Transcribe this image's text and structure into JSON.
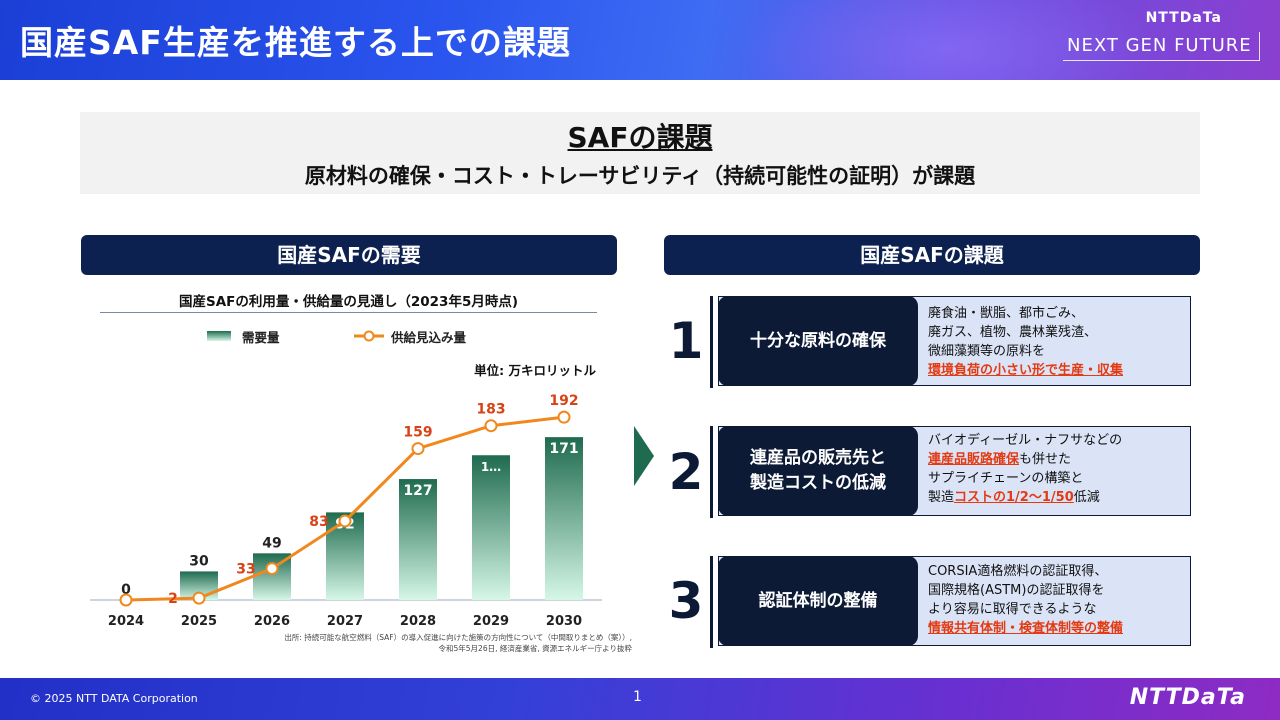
{
  "header": {
    "title": "国産SAF生産を推進する上での課題",
    "brand_small": "NTTDaTa",
    "brand_tag": "NEXT GEN FUTURE"
  },
  "summary": {
    "title": "SAFの課題",
    "subtitle": "原材料の確保・コスト・トレーサビリティ（持続可能性の証明）が課題"
  },
  "left": {
    "section_title": "国産SAFの需要",
    "chart_title": "国産SAFの利用量・供給量の見通し（2023年5月時点)",
    "unit": "単位: 万キロリットル",
    "source_line1": "出所: 持続可能な航空燃料（SAF）の導入促進に向けた施策の方向性について（中間取りまとめ（案））,",
    "source_line2": "令和5年5月26日, 経済産業省, 資源エネルギー庁より抜粋"
  },
  "chart_data": {
    "type": "bar",
    "categories": [
      "2024",
      "2025",
      "2026",
      "2027",
      "2028",
      "2029",
      "2030"
    ],
    "series": [
      {
        "name": "需要量",
        "type": "bar",
        "values": [
          0,
          30,
          49,
          92,
          127,
          1,
          171
        ],
        "labels": [
          "0",
          "30",
          "49",
          "92",
          "127",
          "1…",
          "171"
        ]
      },
      {
        "name": "供給見込み量",
        "type": "line",
        "values": [
          0,
          2,
          33,
          83,
          159,
          183,
          192
        ],
        "labels": [
          "",
          "2",
          "33",
          "83",
          "159",
          "183",
          "192"
        ]
      }
    ],
    "ylim": [
      0,
      210
    ],
    "legend_position": "top",
    "colors": {
      "bar_top": "#1f6b4f",
      "bar_bottom": "#d6f7e8",
      "line": "#f0881e",
      "line_label": "#d84315",
      "axis": "#9aa8b8"
    }
  },
  "right": {
    "section_title": "国産SAFの課題",
    "issues": [
      {
        "num": "1",
        "label": "十分な原料の確保",
        "lines": [
          "廃食油・獣脂、都市ごみ、",
          "廃ガス、植物、農林業残渣、",
          "微細藻類等の原料を"
        ],
        "highlight": "環境負荷の小さい形で生産・収集"
      },
      {
        "num": "2",
        "label1": "連産品の販売先と",
        "label2": "製造コストの低減",
        "line1": "バイオディーゼル・ナフサなどの",
        "hl1": "連産品販路確保",
        "line2_rest": "も併せた",
        "line3": "サプライチェーンの構築と",
        "line4_pre": "製造",
        "hl2": "コストの1/2～1/50",
        "line4_post": "低減"
      },
      {
        "num": "3",
        "label": "認証体制の整備",
        "lines": [
          "CORSIA適格燃料の認証取得、",
          "国際規格(ASTM)の認証取得を",
          "より容易に取得できるような"
        ],
        "highlight": "情報共有体制・検査体制等の整備"
      }
    ]
  },
  "footer": {
    "copyright": "© 2025 NTT DATA Corporation",
    "page": "1",
    "logo": "NTTDaTa"
  }
}
